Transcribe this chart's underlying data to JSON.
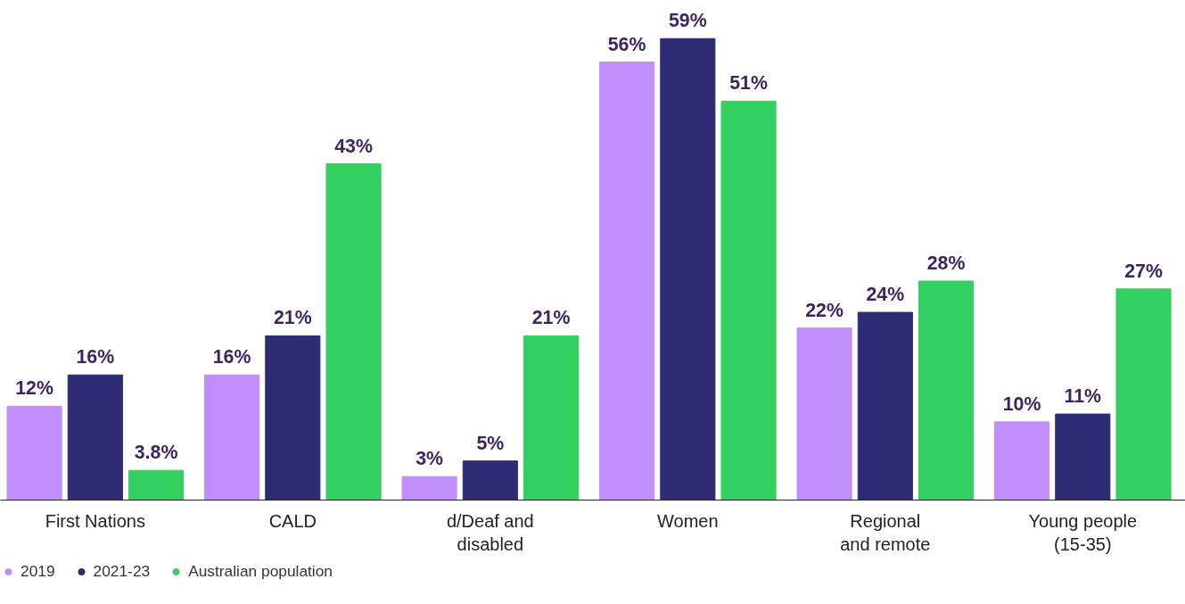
{
  "chart_data": {
    "type": "bar",
    "categories": [
      "First Nations",
      "CALD",
      "d/Deaf and\ndisabled",
      "Women",
      "Regional\nand remote",
      "Young people\n(15-35)"
    ],
    "series": [
      {
        "name": "2019",
        "color": "#c08ffc",
        "values": [
          12,
          16,
          3,
          56,
          22,
          10
        ],
        "value_labels": [
          "12%",
          "16%",
          "3%",
          "56%",
          "22%",
          "10%"
        ]
      },
      {
        "name": "2021-23",
        "color": "#2e2c74",
        "values": [
          16,
          21,
          5,
          59,
          24,
          11
        ],
        "value_labels": [
          "16%",
          "21%",
          "5%",
          "59%",
          "24%",
          "11%"
        ]
      },
      {
        "name": "Australian population",
        "color": "#33d162",
        "values": [
          3.8,
          43,
          21,
          51,
          28,
          27
        ],
        "value_labels": [
          "3.8%",
          "43%",
          "21%",
          "51%",
          "28%",
          "27%"
        ]
      }
    ],
    "legend": "bottom left",
    "grid": false
  }
}
